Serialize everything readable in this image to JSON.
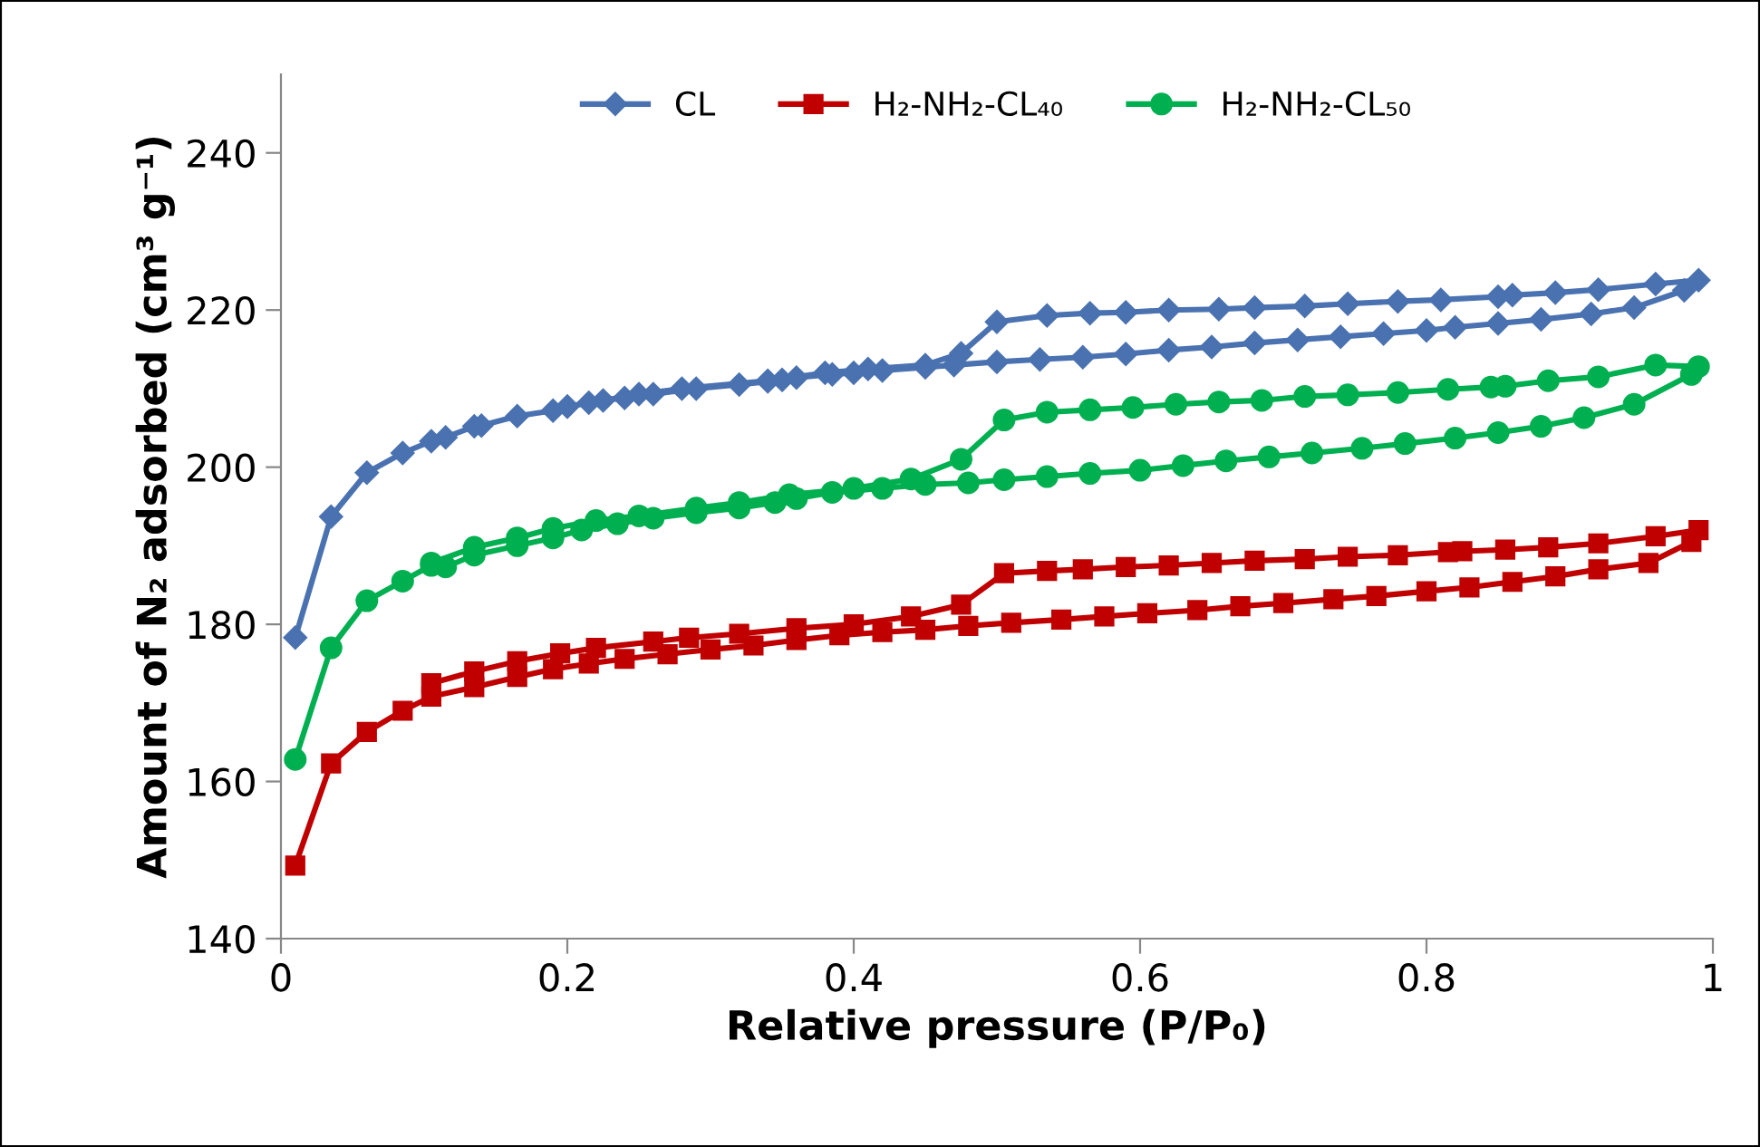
{
  "chart_data": {
    "type": "line",
    "xlabel": "Relative pressure (P/P₀)",
    "ylabel": "Amount of N₂ adsorbed (cm³ g⁻¹)",
    "xlim": [
      0,
      1
    ],
    "xticks": [
      0,
      0.2,
      0.4,
      0.6,
      0.8,
      1
    ],
    "ylim": [
      140,
      250
    ],
    "yticks": [
      140,
      160,
      180,
      200,
      220,
      240
    ],
    "grid": false,
    "legend": "top",
    "line_style": "solid",
    "series": [
      {
        "name": "CL",
        "color": "#4a72b0",
        "marker": "diamond",
        "x": [
          0.01,
          0.035,
          0.06,
          0.085,
          0.105,
          0.115,
          0.135,
          0.14,
          0.165,
          0.19,
          0.2,
          0.215,
          0.225,
          0.24,
          0.26,
          0.29,
          0.32,
          0.34,
          0.35,
          0.36,
          0.385,
          0.4,
          0.42,
          0.45,
          0.47,
          0.5,
          0.53,
          0.56,
          0.59,
          0.62,
          0.65,
          0.68,
          0.71,
          0.74,
          0.77,
          0.8,
          0.82,
          0.85,
          0.88,
          0.915,
          0.945,
          0.98,
          0.99,
          0.96,
          0.92,
          0.89,
          0.86,
          0.85,
          0.81,
          0.78,
          0.745,
          0.715,
          0.68,
          0.655,
          0.62,
          0.59,
          0.565,
          0.535,
          0.5,
          0.475,
          0.45,
          0.41,
          0.38,
          0.34,
          0.28,
          0.25,
          0.2
        ],
        "values": [
          178.3,
          193.7,
          199.3,
          201.8,
          203.3,
          203.8,
          205.2,
          205.3,
          206.5,
          207.2,
          207.7,
          208.2,
          208.5,
          208.8,
          209.3,
          210,
          210.5,
          210.9,
          211.1,
          211.4,
          211.8,
          212,
          212.3,
          212.7,
          213,
          213.4,
          213.7,
          214,
          214.4,
          214.9,
          215.3,
          215.8,
          216.2,
          216.6,
          217,
          217.4,
          217.8,
          218.3,
          218.8,
          219.5,
          220.3,
          222.5,
          223.8,
          223.3,
          222.6,
          222.2,
          221.9,
          221.7,
          221.3,
          221.1,
          220.8,
          220.5,
          220.3,
          220.1,
          220,
          219.7,
          219.6,
          219.3,
          218.5,
          214.5,
          213,
          212.5,
          212,
          211,
          210,
          209.3,
          207.7
        ]
      },
      {
        "name": "H₂-NH₂-CL₄₀",
        "color": "#c00000",
        "marker": "square",
        "x": [
          0.01,
          0.035,
          0.06,
          0.085,
          0.105,
          0.135,
          0.165,
          0.19,
          0.215,
          0.24,
          0.27,
          0.3,
          0.33,
          0.36,
          0.39,
          0.42,
          0.45,
          0.48,
          0.51,
          0.545,
          0.575,
          0.605,
          0.64,
          0.67,
          0.7,
          0.735,
          0.765,
          0.8,
          0.83,
          0.86,
          0.89,
          0.92,
          0.955,
          0.985,
          0.99,
          0.96,
          0.92,
          0.885,
          0.855,
          0.825,
          0.815,
          0.78,
          0.745,
          0.715,
          0.68,
          0.65,
          0.62,
          0.59,
          0.56,
          0.535,
          0.505,
          0.475,
          0.44,
          0.4,
          0.36,
          0.32,
          0.285,
          0.26,
          0.22,
          0.195,
          0.165,
          0.135,
          0.105
        ],
        "values": [
          149.3,
          162.3,
          166.3,
          169,
          170.8,
          172,
          173.3,
          174.3,
          175,
          175.6,
          176.2,
          176.8,
          177.3,
          178,
          178.6,
          179,
          179.3,
          179.8,
          180.2,
          180.6,
          181,
          181.4,
          181.8,
          182.3,
          182.7,
          183.2,
          183.6,
          184.2,
          184.7,
          185.4,
          186.1,
          187,
          187.8,
          190.5,
          192,
          191.2,
          190.3,
          189.8,
          189.5,
          189.3,
          189.2,
          188.8,
          188.6,
          188.3,
          188.1,
          187.8,
          187.5,
          187.3,
          187,
          186.8,
          186.5,
          182.5,
          181,
          180,
          179.5,
          178.8,
          178.3,
          177.8,
          177,
          176.3,
          175.3,
          174,
          172.5
        ]
      },
      {
        "name": "H₂-NH₂-CL₅₀",
        "color": "#00b050",
        "marker": "circle",
        "x": [
          0.01,
          0.035,
          0.06,
          0.085,
          0.105,
          0.115,
          0.135,
          0.165,
          0.19,
          0.21,
          0.235,
          0.26,
          0.29,
          0.32,
          0.345,
          0.36,
          0.385,
          0.42,
          0.45,
          0.48,
          0.505,
          0.535,
          0.565,
          0.6,
          0.63,
          0.66,
          0.69,
          0.72,
          0.755,
          0.785,
          0.82,
          0.85,
          0.88,
          0.91,
          0.945,
          0.985,
          0.99,
          0.96,
          0.92,
          0.885,
          0.855,
          0.845,
          0.815,
          0.78,
          0.745,
          0.715,
          0.685,
          0.655,
          0.625,
          0.595,
          0.565,
          0.535,
          0.505,
          0.475,
          0.44,
          0.4,
          0.355,
          0.32,
          0.29,
          0.25,
          0.22,
          0.19,
          0.165,
          0.135,
          0.105
        ],
        "values": [
          162.8,
          177,
          183,
          185.5,
          187.5,
          187.3,
          188.8,
          190,
          191,
          192,
          192.8,
          193.5,
          194.2,
          194.8,
          195.5,
          196,
          196.8,
          197.3,
          197.8,
          198,
          198.4,
          198.8,
          199.2,
          199.6,
          200.2,
          200.8,
          201.3,
          201.8,
          202.4,
          203,
          203.7,
          204.4,
          205.2,
          206.3,
          208,
          211.8,
          212.8,
          213,
          211.5,
          211,
          210.3,
          210.2,
          209.9,
          209.5,
          209.2,
          209,
          208.5,
          208.3,
          208,
          207.6,
          207.3,
          207,
          206,
          201,
          198.5,
          197.3,
          196.5,
          195.5,
          194.8,
          193.8,
          193.2,
          192.2,
          191,
          189.8,
          187.8
        ]
      }
    ]
  }
}
